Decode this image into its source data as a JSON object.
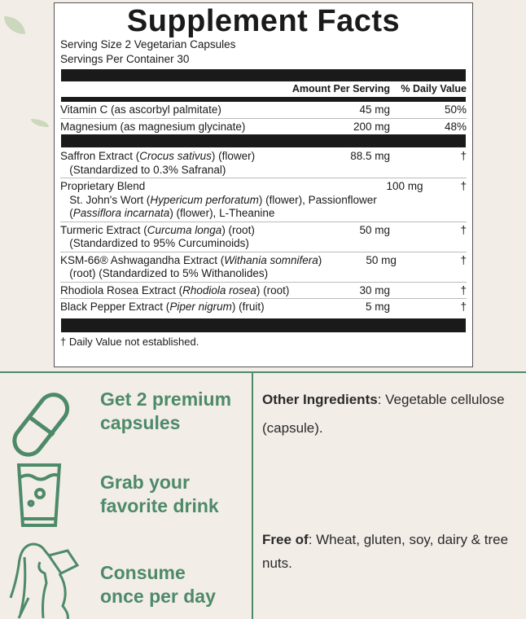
{
  "facts": {
    "title": "Supplement Facts",
    "serving_size": "Serving Size 2 Vegetarian Capsules",
    "servings_per_container": "Servings Per Container 30",
    "header": {
      "amount": "Amount Per Serving",
      "dv": "% Daily Value"
    },
    "vitamins": [
      {
        "name": [
          {
            "t": "Vitamin C (as ascorbyl palmitate)"
          }
        ],
        "amount": "45 mg",
        "dv": "50%"
      },
      {
        "name": [
          {
            "t": "Magnesium (as magnesium glycinate)"
          }
        ],
        "amount": "200 mg",
        "dv": "48%"
      }
    ],
    "ingredients": [
      {
        "name": [
          {
            "t": "Saffron Extract ("
          },
          {
            "t": "Crocus sativus",
            "i": true
          },
          {
            "t": ") (flower)"
          },
          {
            "br": true
          },
          {
            "t": "   (Standardized to 0.3% Safranal)"
          }
        ],
        "amount": "88.5 mg",
        "dv": "†"
      },
      {
        "name": [
          {
            "t": "Proprietary Blend"
          },
          {
            "br": true
          },
          {
            "t": "   St. John's Wort ("
          },
          {
            "t": "Hypericum perforatum",
            "i": true
          },
          {
            "t": ") (flower), Passionflower"
          },
          {
            "br": true
          },
          {
            "t": "   ("
          },
          {
            "t": "Passiflora incarnata",
            "i": true
          },
          {
            "t": ") (flower), L-Theanine"
          }
        ],
        "amount": "100 mg",
        "dv": "†"
      },
      {
        "name": [
          {
            "t": "Turmeric Extract ("
          },
          {
            "t": "Curcuma longa",
            "i": true
          },
          {
            "t": ") (root)"
          },
          {
            "br": true
          },
          {
            "t": "   (Standardized to 95% Curcuminoids)"
          }
        ],
        "amount": "50 mg",
        "dv": "†"
      },
      {
        "name": [
          {
            "t": "KSM-66® Ashwagandha Extract ("
          },
          {
            "t": "Withania somnifera",
            "i": true
          },
          {
            "t": ")"
          },
          {
            "br": true
          },
          {
            "t": "   (root) (Standardized to 5% Withanolides)"
          }
        ],
        "amount": "50 mg",
        "dv": "†"
      },
      {
        "name": [
          {
            "t": "Rhodiola Rosea Extract ("
          },
          {
            "t": "Rhodiola rosea",
            "i": true
          },
          {
            "t": ") (root)"
          }
        ],
        "amount": "30 mg",
        "dv": "†"
      },
      {
        "name": [
          {
            "t": "Black Pepper Extract ("
          },
          {
            "t": "Piper nigrum",
            "i": true
          },
          {
            "t": ") (fruit)"
          }
        ],
        "amount": "5 mg",
        "dv": "†"
      }
    ],
    "footnote": "† Daily Value not established."
  },
  "steps": [
    {
      "icon": "capsule-icon",
      "line1": "Get 2 premium",
      "line2": "capsules"
    },
    {
      "icon": "glass-icon",
      "line1": "Grab your",
      "line2": "favorite drink"
    },
    {
      "icon": "woman-drinking-icon",
      "line1": "Consume",
      "line2": "once per day"
    }
  ],
  "other": {
    "label": "Other Ingredients",
    "text": ": Vegetable cellulose (capsule)."
  },
  "free": {
    "label": "Free of",
    "text": ": Wheat, gluten, soy, dairy & tree nuts."
  },
  "colors": {
    "accent": "#4d8a68",
    "background": "#f3ede8"
  }
}
